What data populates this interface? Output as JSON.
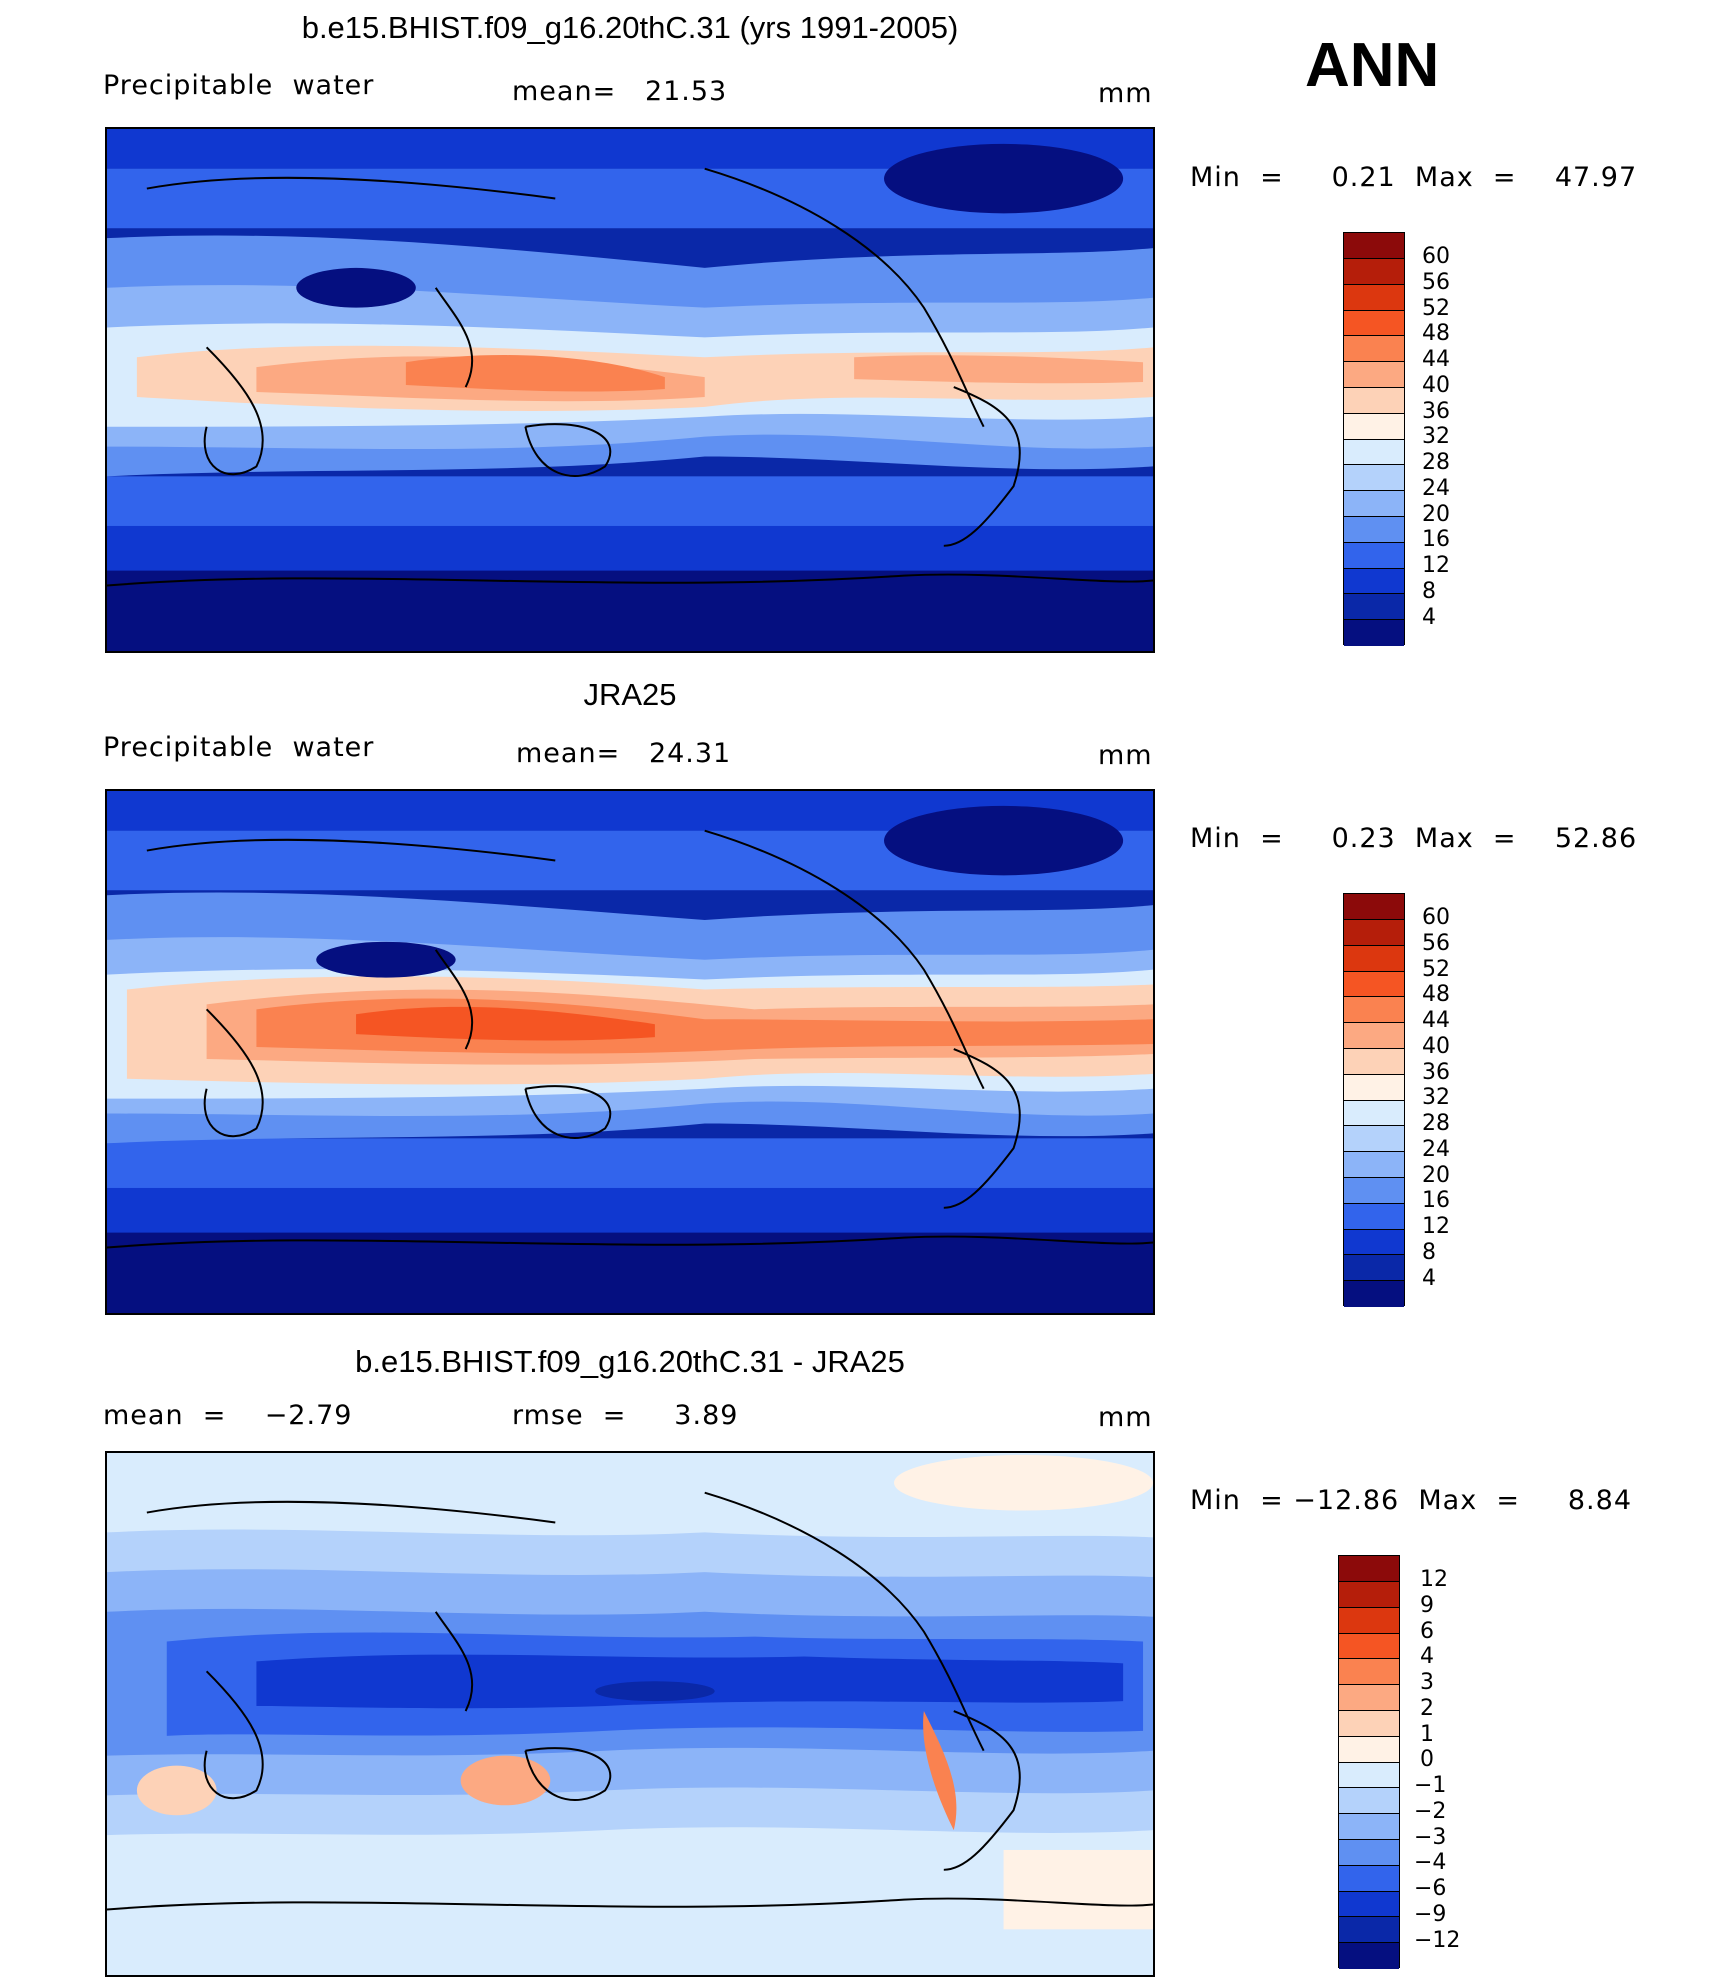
{
  "season": "ANN",
  "units": "mm",
  "panels": [
    {
      "title": "b.e15.BHIST.f09_g16.20thC.31 (yrs 1991-2005)",
      "left_label": "Precipitable  water",
      "center_label": "mean=   21.53",
      "right_label": "mm",
      "minmax_label": "Min  =     0.21  Max  =    47.97",
      "colorbar": {
        "ticks": [
          "60",
          "56",
          "52",
          "48",
          "44",
          "40",
          "36",
          "32",
          "28",
          "24",
          "20",
          "16",
          "12",
          "8",
          "4"
        ],
        "colors": [
          "#8c0a0a",
          "#b51e0a",
          "#dc370f",
          "#f55523",
          "#fa8250",
          "#fca982",
          "#fdd2b7",
          "#fff2e6",
          "#d9ecfd",
          "#b4d2fb",
          "#8cb4f8",
          "#5f90f2",
          "#3264ec",
          "#1038d0",
          "#0a28a8",
          "#050f80"
        ]
      }
    },
    {
      "title": "JRA25",
      "left_label": "Precipitable  water",
      "center_label": "mean=   24.31",
      "right_label": "mm",
      "minmax_label": "Min  =     0.23  Max  =    52.86",
      "colorbar": {
        "ticks": [
          "60",
          "56",
          "52",
          "48",
          "44",
          "40",
          "36",
          "32",
          "28",
          "24",
          "20",
          "16",
          "12",
          "8",
          "4"
        ],
        "colors": [
          "#8c0a0a",
          "#b51e0a",
          "#dc370f",
          "#f55523",
          "#fa8250",
          "#fca982",
          "#fdd2b7",
          "#fff2e6",
          "#d9ecfd",
          "#b4d2fb",
          "#8cb4f8",
          "#5f90f2",
          "#3264ec",
          "#1038d0",
          "#0a28a8",
          "#050f80"
        ]
      }
    },
    {
      "title": "b.e15.BHIST.f09_g16.20thC.31 - JRA25",
      "left_label": "mean  =    −2.79",
      "center_label": "rmse  =     3.89",
      "right_label": "mm",
      "minmax_label": "Min  = −12.86  Max  =     8.84",
      "colorbar": {
        "ticks": [
          "12",
          "9",
          "6",
          "4",
          "3",
          "2",
          "1",
          "0",
          "−1",
          "−2",
          "−3",
          "−4",
          "−6",
          "−9",
          "−12"
        ],
        "colors": [
          "#8c0a0a",
          "#b51e0a",
          "#dc370f",
          "#f55523",
          "#fa8250",
          "#fca982",
          "#fdd2b7",
          "#fff2e6",
          "#d9ecfd",
          "#b4d2fb",
          "#8cb4f8",
          "#5f90f2",
          "#3264ec",
          "#1038d0",
          "#0a28a8",
          "#050f80"
        ]
      }
    }
  ]
}
